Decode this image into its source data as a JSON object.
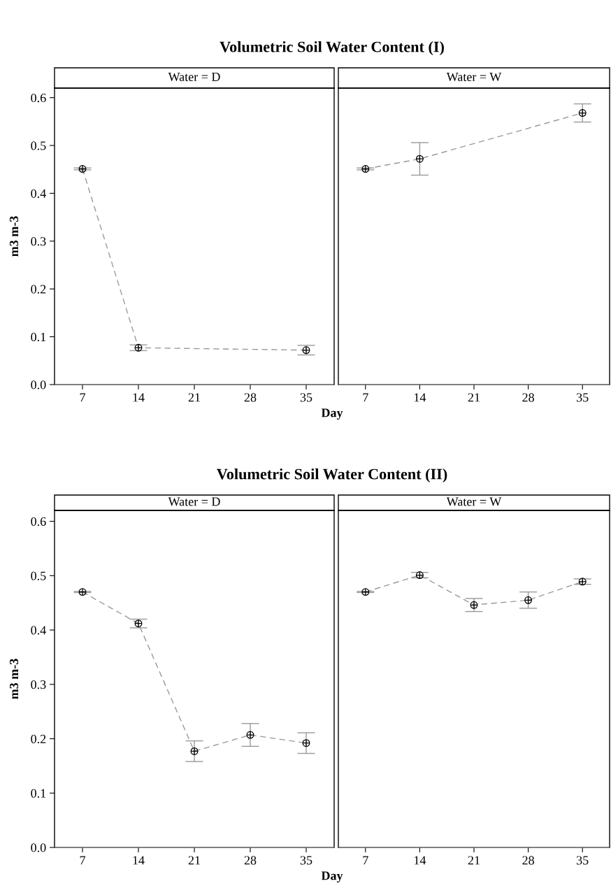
{
  "chart_data": [
    {
      "type": "line",
      "title": "Volumetric Soil Water Content (I)",
      "subtitle": "Water = D",
      "xlabel": "Day",
      "ylabel": "m3 m-3",
      "x": [
        7,
        14,
        35
      ],
      "series": [
        {
          "color": "#999999",
          "values": [
            0.451,
            0.077,
            0.072
          ],
          "errors": [
            0.002,
            0.006,
            0.01
          ]
        }
      ],
      "xlim": [
        3.5,
        38.5
      ],
      "xticks": [
        7,
        14,
        21,
        28,
        35
      ],
      "ylim": [
        0,
        0.62
      ],
      "yticks": [
        {
          "value": 0,
          "label": "0.0"
        },
        0.1,
        0.2,
        0.3,
        0.4,
        0.5,
        0.6
      ],
      "marker": "circle",
      "line_style": "dashed",
      "grid": false,
      "legend": false
    },
    {
      "type": "line",
      "subtitle": "Water = W",
      "x": [
        7,
        14,
        35
      ],
      "series": [
        {
          "color": "#999999",
          "values": [
            0.451,
            0.472,
            0.568
          ],
          "errors": [
            0.002,
            0.034,
            0.019
          ]
        }
      ],
      "xlim": [
        3.5,
        38.5
      ],
      "xticks": [
        7,
        14,
        21,
        28,
        35
      ],
      "ylim": [
        0,
        0.62
      ],
      "tick_labels": "x",
      "marker": "circle",
      "line_style": "dashed",
      "grid": false,
      "legend": false
    },
    {
      "type": "line",
      "title": "Volumetric Soil Water Content (II)",
      "subtitle": "Water = D",
      "xlabel": "Day",
      "ylabel": "m3 m-3",
      "x": [
        7,
        14,
        21,
        28,
        35
      ],
      "series": [
        {
          "color": "#999999",
          "values": [
            0.47,
            0.412,
            0.177,
            0.207,
            0.192
          ],
          "errors": [
            0.001,
            0.008,
            0.019,
            0.021,
            0.019
          ]
        }
      ],
      "xlim": [
        3.5,
        38.5
      ],
      "xticks": [
        7,
        14,
        21,
        28,
        35
      ],
      "ylim": [
        0,
        0.62
      ],
      "yticks": [
        {
          "value": 0,
          "label": "0.0"
        },
        0.1,
        0.2,
        0.3,
        0.4,
        0.5,
        0.6
      ],
      "marker": "circle",
      "line_style": "dashed",
      "grid": false,
      "legend": false
    },
    {
      "type": "line",
      "subtitle": "Water = W",
      "x": [
        7,
        14,
        21,
        28,
        35
      ],
      "series": [
        {
          "color": "#999999",
          "values": [
            0.47,
            0.501,
            0.446,
            0.455,
            0.489
          ],
          "errors": [
            0.001,
            0.005,
            0.012,
            0.015,
            0.005
          ]
        }
      ],
      "xlim": [
        3.5,
        38.5
      ],
      "xticks": [
        7,
        14,
        21,
        28,
        35
      ],
      "ylim": [
        0,
        0.62
      ],
      "tick_labels": "x",
      "marker": "circle",
      "line_style": "dashed",
      "grid": false,
      "legend": false
    }
  ]
}
